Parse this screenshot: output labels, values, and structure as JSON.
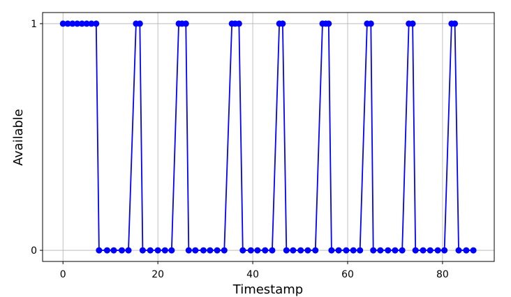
{
  "chart_data": {
    "type": "line",
    "x_label": "Timestamp",
    "y_label": "Available",
    "x": [
      0,
      1,
      2,
      3,
      4,
      5,
      6,
      7,
      7.6,
      9.3,
      10.7,
      12.4,
      13.8,
      15.4,
      16.2,
      16.8,
      18.4,
      20,
      21.5,
      22.9,
      24.4,
      25.1,
      25.9,
      26.5,
      27.9,
      29.6,
      31.0,
      32.5,
      34.0,
      35.6,
      36.3,
      37.1,
      37.9,
      39.6,
      41.0,
      42.6,
      44.1,
      45.6,
      46.3,
      47.1,
      48.5,
      50.1,
      51.6,
      53.2,
      54.7,
      55.4,
      56.0,
      56.6,
      58.1,
      59.7,
      61.2,
      62.6,
      64.1,
      64.9,
      65.4,
      66.9,
      68.5,
      70.0,
      71.5,
      72.9,
      73.7,
      74.3,
      75.9,
      77.4,
      79.0,
      80.4,
      81.9,
      82.6,
      83.4,
      85.0,
      86.5
    ],
    "series": [
      {
        "color": "#0000ff",
        "values": [
          1,
          1,
          1,
          1,
          1,
          1,
          1,
          1,
          0,
          0,
          0,
          0,
          0,
          1,
          1,
          0,
          0,
          0,
          0,
          0,
          1,
          1,
          1,
          0,
          0,
          0,
          0,
          0,
          0,
          1,
          1,
          1,
          0,
          0,
          0,
          0,
          0,
          1,
          1,
          0,
          0,
          0,
          0,
          0,
          1,
          1,
          1,
          0,
          0,
          0,
          0,
          0,
          1,
          1,
          0,
          0,
          0,
          0,
          0,
          1,
          1,
          0,
          0,
          0,
          0,
          0,
          1,
          1,
          0,
          0,
          0
        ]
      }
    ],
    "xlim": [
      -4.3,
      90.9
    ],
    "ylim": [
      -0.049,
      1.049
    ],
    "xticks": [
      0,
      20,
      40,
      60,
      80
    ],
    "yticks": [
      0,
      1
    ],
    "grid": true
  }
}
